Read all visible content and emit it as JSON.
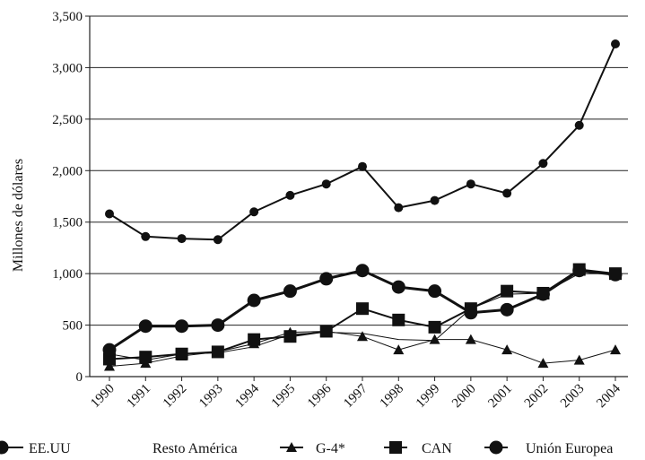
{
  "chart_data": {
    "type": "line",
    "ylabel": "Millones de dólares",
    "xlabel": "",
    "ylim": [
      0,
      3500
    ],
    "yticks": [
      0,
      500,
      1000,
      1500,
      2000,
      2500,
      3000,
      3500
    ],
    "ytick_labels": [
      "0",
      "500",
      "1,000",
      "1,500",
      "2,000",
      "2,500",
      "3,000",
      "3,500"
    ],
    "grid": "horizontal",
    "legend_position": "bottom",
    "x": [
      "1990",
      "1991",
      "1992",
      "1993",
      "1994",
      "1995",
      "1996",
      "1997",
      "1998",
      "1999",
      "2000",
      "2001",
      "2002",
      "2003",
      "2004"
    ],
    "series": [
      {
        "name": "EE.UU",
        "marker": "circle-small",
        "line_width": 2,
        "values": [
          1580,
          1360,
          1340,
          1330,
          1600,
          1760,
          1870,
          2040,
          1640,
          1710,
          1870,
          1780,
          2070,
          2440,
          3230
        ]
      },
      {
        "name": "Resto América",
        "marker": "none",
        "line_width": 1,
        "values": [
          220,
          160,
          220,
          230,
          290,
          410,
          430,
          420,
          360,
          350,
          660,
          800,
          810,
          1000,
          1000
        ]
      },
      {
        "name": "G-4*",
        "marker": "triangle",
        "line_width": 1,
        "values": [
          100,
          130,
          200,
          240,
          320,
          430,
          440,
          390,
          260,
          360,
          360,
          260,
          130,
          160,
          260
        ]
      },
      {
        "name": "CAN",
        "marker": "square",
        "line_width": 2,
        "values": [
          170,
          190,
          220,
          240,
          360,
          390,
          440,
          660,
          550,
          480,
          660,
          830,
          810,
          1040,
          1000
        ]
      },
      {
        "name": "Unión Europea",
        "marker": "circle",
        "line_width": 3,
        "values": [
          260,
          490,
          490,
          500,
          740,
          830,
          950,
          1030,
          870,
          830,
          620,
          650,
          800,
          1030,
          990
        ]
      }
    ]
  }
}
